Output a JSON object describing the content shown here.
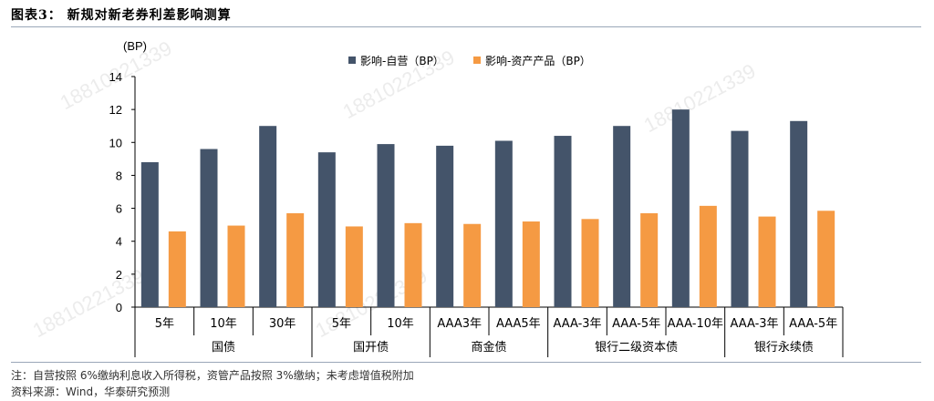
{
  "figure_title": "图表3： 新规对新老券利差影响测算",
  "note": "注：自营按照 6%缴纳利息收入所得税，资管产品按照 3%缴纳；未考虑增值税附加",
  "source": "资料来源：Wind，华泰研究预测",
  "watermark": "18810221339",
  "colors": {
    "series1": "#44546a",
    "series2": "#f59a43",
    "axis": "#000000"
  },
  "chart_data": {
    "type": "bar",
    "ylabel": "(BP)",
    "ylim": [
      0,
      14
    ],
    "yticks": [
      0,
      2,
      4,
      6,
      8,
      10,
      12,
      14
    ],
    "grid": false,
    "legend_position": "top-center",
    "categories": [
      "5年",
      "10年",
      "30年",
      "5年",
      "10年",
      "AAA3年",
      "AAA5年",
      "AAA-3年",
      "AAA-5年",
      "AAA-10年",
      "AAA-3年",
      "AAA-5年"
    ],
    "groups": [
      {
        "label": "国债",
        "count": 3
      },
      {
        "label": "国开债",
        "count": 2
      },
      {
        "label": "商金债",
        "count": 2
      },
      {
        "label": "银行二级资本债",
        "count": 3
      },
      {
        "label": "银行永续债",
        "count": 2
      }
    ],
    "series": [
      {
        "name": "影响-自营（BP）",
        "values": [
          8.8,
          9.6,
          11.0,
          9.4,
          9.9,
          9.8,
          10.1,
          10.4,
          11.0,
          12.0,
          10.7,
          11.3
        ]
      },
      {
        "name": "影响-资产产品（BP）",
        "values": [
          4.6,
          4.95,
          5.7,
          4.9,
          5.1,
          5.05,
          5.2,
          5.35,
          5.7,
          6.15,
          5.5,
          5.85
        ]
      }
    ]
  }
}
